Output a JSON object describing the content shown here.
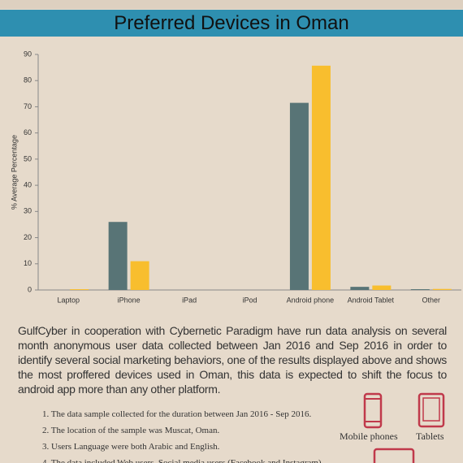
{
  "chart_data": {
    "type": "bar",
    "title": "Preferred Devices in Oman",
    "y_label": "% Average Percentage",
    "categories": [
      "Laptop",
      "iPhone",
      "iPad",
      "iPod",
      "Android phone",
      "Android Tablet",
      "Other"
    ],
    "series": [
      {
        "color": "#587476",
        "values": [
          0,
          26,
          0,
          0,
          71.5,
          1.2,
          0.3
        ]
      },
      {
        "color": "#f8be2e",
        "values": [
          0.3,
          11,
          0,
          0,
          85.7,
          1.7,
          0.4
        ]
      }
    ],
    "ylim": [
      0,
      90
    ],
    "yticks": [
      0,
      10,
      20,
      30,
      40,
      50,
      60,
      70,
      80,
      90
    ],
    "grid": false
  },
  "description": "GulfCyber in cooperation with Cybernetic Paradigm have run data analysis on several month anonymous user data collected between Jan 2016 and Sep 2016 in order to identify several social marketing behaviors, one of the results displayed above and shows the most proffered devices used in Oman, this data is expected to shift the focus to android app more than any other platform.",
  "notes": [
    "1. The data sample collected for the duration between Jan 2016 - Sep 2016.",
    "2. The location of the sample was Muscat, Oman.",
    "3. Users Language were both Arabic and English.",
    "4. The data included Web users, Social media users (Facebook and Instagram)"
  ],
  "icons": [
    "Mobile phones",
    "Tablets"
  ]
}
